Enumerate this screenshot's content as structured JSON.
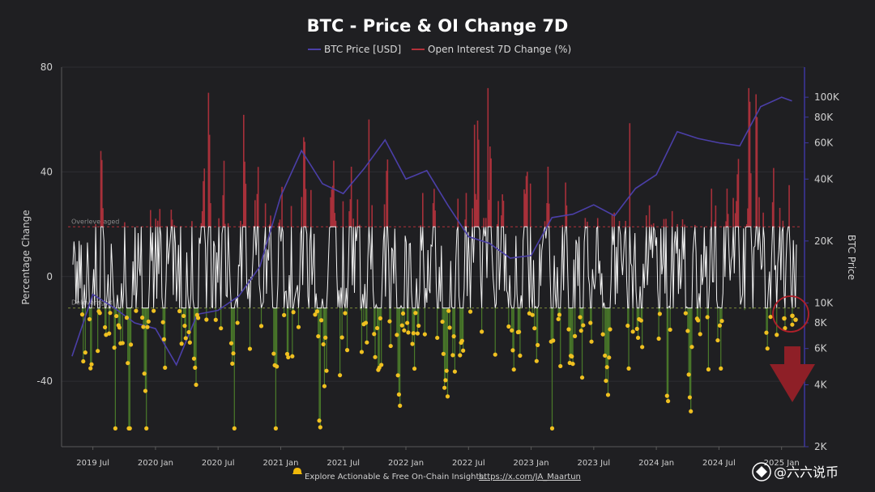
{
  "chart_data": {
    "type": "line",
    "title": "BTC - Price & OI Change 7D",
    "legend": [
      {
        "name": "BTC Price [USD]",
        "color": "#4b3fa8"
      },
      {
        "name": "Open Interest 7D Change (%)",
        "color": "#b3313a"
      }
    ],
    "legend_position": "top-center",
    "ylabel_left": "Percentage Change",
    "ylabel_right": "BTC Price",
    "y_left_ticks": [
      "80",
      "40",
      "0",
      "-40"
    ],
    "y_left_range": [
      -65,
      80
    ],
    "y_right_ticks": [
      "100K",
      "80K",
      "60K",
      "40K",
      "20K",
      "10K",
      "8K",
      "6K",
      "4K",
      "2K"
    ],
    "y_right_scale": "log",
    "y_right_range": [
      2000,
      140000
    ],
    "x_ticks": [
      "2019 Jul",
      "2020 Jan",
      "2020 Jul",
      "2021 Jan",
      "2021 Jul",
      "2022 Jan",
      "2022 Jul",
      "2023 Jan",
      "2023 Jul",
      "2024 Jan",
      "2024 Jul",
      "2025 Jan"
    ],
    "threshold_lines": [
      {
        "label": "Overleveraged",
        "value": 19,
        "color": "#b3313a"
      },
      {
        "label": "Deleveraged",
        "value": -12,
        "color": "#7a8a3a"
      }
    ],
    "series": [
      {
        "name": "BTC Price [USD]",
        "x": [
          "2019-05",
          "2019-07",
          "2019-09",
          "2019-11",
          "2020-01",
          "2020-03",
          "2020-05",
          "2020-07",
          "2020-09",
          "2020-11",
          "2021-01",
          "2021-03",
          "2021-05",
          "2021-07",
          "2021-09",
          "2021-11",
          "2022-01",
          "2022-03",
          "2022-05",
          "2022-07",
          "2022-09",
          "2022-11",
          "2023-01",
          "2023-03",
          "2023-05",
          "2023-07",
          "2023-09",
          "2023-11",
          "2024-01",
          "2024-03",
          "2024-05",
          "2024-07",
          "2024-09",
          "2024-11",
          "2025-01",
          "2025-02"
        ],
        "values": [
          5500,
          11000,
          9500,
          8000,
          7500,
          5000,
          8800,
          9200,
          10800,
          15000,
          33000,
          55000,
          38000,
          34000,
          45000,
          62000,
          40000,
          44000,
          30000,
          21000,
          19500,
          16500,
          17000,
          26000,
          27000,
          30000,
          26500,
          36000,
          42000,
          68000,
          63000,
          60000,
          58000,
          90000,
          100000,
          96000
        ]
      },
      {
        "name": "Open Interest 7D Change (%)",
        "note": "oscillates roughly between -55 and 72; red above the Overleveraged line, white in between, green below the Deleveraged line, yellow dots at deleveraging lows"
      }
    ],
    "annotation": "red circle and arrow marking the latest deleveraging lows (2025 Jan)",
    "footer_text": "Explore Actionable & Free On-Chain Insights:",
    "footer_link": "https://x.com/JA_Maartun",
    "watermark": "@六六说币"
  }
}
